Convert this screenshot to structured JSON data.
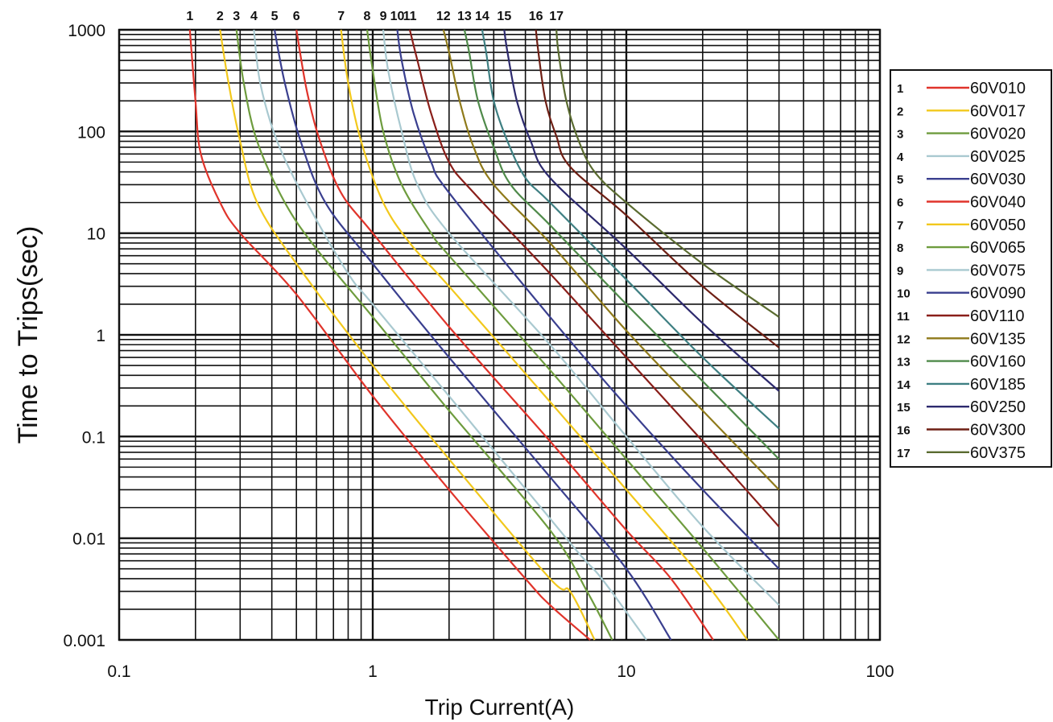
{
  "chart_data": {
    "type": "line",
    "title": "",
    "xlabel": "Trip Current(A)",
    "ylabel": "Time to Trips(sec)",
    "xscale": "log",
    "yscale": "log",
    "xlim": [
      0.1,
      100
    ],
    "ylim": [
      0.001,
      1000
    ],
    "x_tick_labels": [
      "0.1",
      "1",
      "10",
      "100"
    ],
    "y_tick_labels": [
      "1000",
      "100",
      "10",
      "1",
      "0.1",
      "0.01",
      "0.001"
    ],
    "grid": true,
    "legend_position": "right",
    "series": [
      {
        "id": "1",
        "name": "60V010",
        "color": "#e0342b",
        "x": [
          0.19,
          0.2,
          0.21,
          0.25,
          0.3,
          0.5,
          1.0,
          2.0,
          4.0,
          5.0,
          7.2
        ],
        "y": [
          1000,
          200,
          60,
          20,
          10,
          2.5,
          0.25,
          0.03,
          0.004,
          0.0022,
          0.001
        ]
      },
      {
        "id": "2",
        "name": "60V017",
        "color": "#f2c81c",
        "x": [
          0.25,
          0.27,
          0.3,
          0.35,
          0.5,
          1.0,
          2.0,
          5.0,
          6.0,
          7.5
        ],
        "y": [
          1000,
          300,
          80,
          20,
          5,
          0.5,
          0.06,
          0.004,
          0.003,
          0.001
        ]
      },
      {
        "id": "3",
        "name": "60V020",
        "color": "#6e9c3e",
        "x": [
          0.29,
          0.31,
          0.35,
          0.45,
          0.6,
          1.0,
          2.0,
          5.0,
          7.0,
          8.8
        ],
        "y": [
          1000,
          300,
          80,
          20,
          7,
          1.5,
          0.18,
          0.012,
          0.003,
          0.001
        ]
      },
      {
        "id": "4",
        "name": "60V025",
        "color": "#a9c9d0",
        "x": [
          0.34,
          0.36,
          0.42,
          0.55,
          0.8,
          1.0,
          2.0,
          6.0,
          8.0,
          12.0
        ],
        "y": [
          1000,
          300,
          80,
          20,
          4,
          2.0,
          0.25,
          0.009,
          0.004,
          0.001
        ]
      },
      {
        "id": "5",
        "name": "60V030",
        "color": "#3a3f8f",
        "x": [
          0.41,
          0.45,
          0.52,
          0.65,
          1.0,
          2.0,
          5.0,
          10.0,
          15.0
        ],
        "y": [
          1000,
          300,
          80,
          20,
          5,
          0.6,
          0.04,
          0.005,
          0.001
        ]
      },
      {
        "id": "6",
        "name": "60V040",
        "color": "#e0342b",
        "x": [
          0.5,
          0.55,
          0.62,
          0.75,
          1.0,
          2.0,
          5.0,
          10.0,
          15.0,
          22.0
        ],
        "y": [
          1000,
          250,
          80,
          25,
          10,
          1.2,
          0.09,
          0.012,
          0.004,
          0.001
        ]
      },
      {
        "id": "7",
        "name": "60V050",
        "color": "#f2c81c",
        "x": [
          0.75,
          0.8,
          0.9,
          1.1,
          1.4,
          2.0,
          5.0,
          10.0,
          20.0,
          30.0
        ],
        "y": [
          1000,
          300,
          80,
          20,
          8,
          3.0,
          0.22,
          0.03,
          0.004,
          0.001
        ]
      },
      {
        "id": "8",
        "name": "60V065",
        "color": "#6e9c3e",
        "x": [
          0.95,
          1.0,
          1.1,
          1.3,
          1.7,
          2.0,
          5.0,
          10.0,
          20.0,
          40.0
        ],
        "y": [
          1000,
          400,
          100,
          30,
          10,
          6.0,
          0.45,
          0.06,
          0.008,
          0.001
        ]
      },
      {
        "id": "9",
        "name": "60V075",
        "color": "#a9c9d0",
        "x": [
          1.1,
          1.15,
          1.3,
          1.5,
          2.0,
          5.0,
          10.0,
          20.0,
          40.0
        ],
        "y": [
          1000,
          400,
          100,
          30,
          10,
          0.8,
          0.1,
          0.013,
          0.0022
        ]
      },
      {
        "id": "10",
        "name": "60V090",
        "color": "#3a3f8f",
        "x": [
          1.25,
          1.3,
          1.45,
          1.7,
          2.0,
          5.0,
          10.0,
          20.0,
          40.0
        ],
        "y": [
          1000,
          500,
          150,
          50,
          25,
          1.5,
          0.2,
          0.03,
          0.005
        ]
      },
      {
        "id": "11",
        "name": "60V110",
        "color": "#8a1f1a",
        "x": [
          1.4,
          1.5,
          1.7,
          2.0,
          2.5,
          5.0,
          10.0,
          20.0,
          40.0
        ],
        "y": [
          1000,
          500,
          150,
          50,
          25,
          4.0,
          0.6,
          0.09,
          0.013
        ]
      },
      {
        "id": "12",
        "name": "60V135",
        "color": "#8f7a1a",
        "x": [
          1.9,
          2.0,
          2.2,
          2.5,
          3.0,
          5.0,
          10.0,
          20.0,
          40.0
        ],
        "y": [
          1000,
          600,
          200,
          70,
          30,
          8.0,
          1.1,
          0.18,
          0.03
        ]
      },
      {
        "id": "13",
        "name": "60V160",
        "color": "#4f8a4a",
        "x": [
          2.3,
          2.4,
          2.6,
          3.0,
          3.5,
          5.0,
          10.0,
          20.0,
          40.0
        ],
        "y": [
          1000,
          600,
          200,
          70,
          30,
          12.0,
          2.0,
          0.35,
          0.06
        ]
      },
      {
        "id": "14",
        "name": "60V185",
        "color": "#3e7f82",
        "x": [
          2.7,
          2.8,
          3.0,
          3.4,
          4.0,
          5.0,
          10.0,
          20.0,
          40.0
        ],
        "y": [
          1000,
          600,
          200,
          80,
          35,
          20.0,
          3.5,
          0.6,
          0.12
        ]
      },
      {
        "id": "15",
        "name": "60V250",
        "color": "#2d2a6e",
        "x": [
          3.3,
          3.4,
          3.7,
          4.2,
          5.0,
          10.0,
          20.0,
          40.0
        ],
        "y": [
          1000,
          600,
          200,
          80,
          35,
          7.0,
          1.3,
          0.28
        ]
      },
      {
        "id": "16",
        "name": "60V300",
        "color": "#6e1f14",
        "x": [
          4.4,
          4.5,
          4.8,
          5.3,
          6.0,
          10.0,
          20.0,
          40.0
        ],
        "y": [
          1000,
          600,
          200,
          90,
          45,
          15.0,
          3.0,
          0.75
        ]
      },
      {
        "id": "17",
        "name": "60V375",
        "color": "#5a6b30",
        "x": [
          5.3,
          5.4,
          5.8,
          6.5,
          7.5,
          10.0,
          20.0,
          40.0
        ],
        "y": [
          1000,
          600,
          200,
          80,
          40,
          20.0,
          5.0,
          1.5
        ]
      }
    ]
  }
}
